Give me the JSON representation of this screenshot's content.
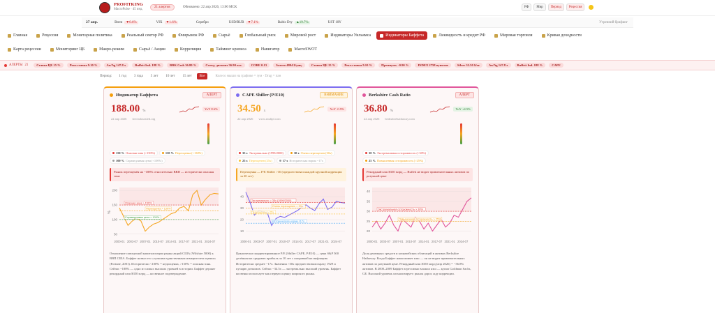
{
  "header": {
    "logo": "PROFITKING",
    "subtitle": "MacroPulse · 45 инд.",
    "alerts_badge": "21 алертов",
    "updated": "Обновлено: 22 апр 2026, 13:00 МСК",
    "buttons": [
      "РФ",
      "Мир",
      "Период",
      "Рецессия"
    ]
  },
  "ticker": {
    "date": "27 апр.",
    "items": [
      {
        "name": "Brent",
        "change": "▼0.6%",
        "dir": "down"
      },
      {
        "name": "VIX",
        "change": "▼1.6%",
        "dir": "down"
      },
      {
        "name": "Серебро"
      },
      {
        "name": "USD/RUB",
        "change": "▼7.1%",
        "dir": "down"
      },
      {
        "name": "Baltic Dry",
        "change": "▲19.7%",
        "dir": "up"
      },
      {
        "name": "UST 10Y"
      }
    ],
    "briefing": "Утренний брифинг"
  },
  "nav": {
    "rows": [
      [
        "Главная",
        "Рецессия",
        "Монетарная политика",
        "Реальный сектор РФ",
        "Финрынок РФ",
        "Сырьё",
        "Глобальный риск",
        "Мировой рост",
        "Индикаторы Уильямса",
        "Индикаторы Баффета",
        "Ликвидность и кредит РФ",
        "Мировая торговля",
        "Кривая доходности"
      ],
      [
        "Карта рецессии",
        "Мониторинг ЦБ",
        "Макро-режим",
        "Сырьё / Акции",
        "Корреляция",
        "Тайминг кризиса",
        "Навигатор",
        "MacroSWOT"
      ]
    ],
    "active": "Индикаторы Баффета"
  },
  "alerts": {
    "label": "АЛЕРТЫ",
    "count": "21",
    "chips": [
      "Ставка ЦБ 15 %",
      "Реал.ставка 9.10 %",
      "Au/Ag 147.8 x",
      "Buffett Ind. 188 %",
      "BRK Cash 36.80 %",
      "Сальд. дисконт 36.90 п.п.",
      "CORE 0.13",
      "Золото 4804 $/унц.",
      "Ставка ЦБ 15 %",
      "Реал.ставка 9.10 %",
      "Премиумь. -0.90 %",
      "INDEX 2758 пунктов",
      "Silver 32.50 $/oz",
      "Au/Ag 147.8 x",
      "Buffett Ind. 188 %",
      "CAPE"
    ]
  },
  "period": {
    "label": "Период:",
    "options": [
      "1 год",
      "3 года",
      "5 лет",
      "10 лет",
      "15 лет",
      "Все"
    ],
    "active": "Все",
    "hint": "Колесо мыши на графике = зум · Drag = пан"
  },
  "cards": [
    {
      "title": "Индикатор Баффета",
      "badge": "АЛЕРТ",
      "badge_kind": "alert",
      "accent": "#f59e0b",
      "value": "188.00",
      "unit": "%",
      "value_color": "#c62828",
      "yoy": "YoY 8.6%",
      "yoy_kind": "bad",
      "date": "22 апр 2026",
      "source": "fred.stlouisfed.org",
      "chips": [
        {
          "value": "150 %",
          "label": "Опасная зона (>150%)",
          "color": "#e53935"
        },
        {
          "value": "130 %",
          "label": "Переоценка (>130%)",
          "color": "#f59e0b"
        },
        {
          "value": "100 %",
          "label": "Справедливая цена (<100%)",
          "color": "#9e9e9e"
        }
      ],
      "note": "Рынок переоценён на ~188% относительно ВВП — исторически опасная зона",
      "note_kind": "alert",
      "chart": {
        "type": "line",
        "ylabel": "%",
        "categories": [
          "2000-01",
          null,
          null,
          "2003-07",
          null,
          null,
          "2007-01",
          null,
          null,
          "2010-07",
          null,
          null,
          "2014-01",
          null,
          null,
          "2017-07",
          null,
          null,
          "2021-01",
          null,
          null,
          "2024-07",
          null,
          null
        ],
        "series": [
          {
            "color": "#f5a623",
            "values": [
              140,
              110,
              80,
              95,
              105,
              95,
              60,
              75,
              85,
              90,
              100,
              110,
              120,
              125,
              140,
              145,
              130,
              185,
              200,
              150,
              170,
              185,
              190,
              188
            ]
          }
        ],
        "ylim": [
          40,
          210
        ],
        "yticks": [
          50,
          100,
          150,
          200
        ],
        "thresholds": [
          {
            "value": 150,
            "label": "Опасная зона > 150%",
            "color": "#e53935"
          },
          {
            "value": 130,
            "label": "Переоценка > 130%",
            "color": "#f59e0b"
          },
          {
            "value": 100,
            "label": "Справедливая цена < 100%",
            "color": "#43a047"
          }
        ]
      },
      "description": "Отношение совокупной капитализации рынка акций США (Wilshire 5000) к ВВП США. Баффет назвал его «лучшим единственным измерителем оценки» (Fortune, 2001). Исторически <100% = недооценка, >150% = опасная зона. Сейчас ~188% — одно из самых высоких уровней в истории. Баффет держит рекордный кэш $350 млрд — косвенное подтверждение."
    },
    {
      "title": "CAPE Shiller (P/E10)",
      "badge": "ВНИМАНИЕ",
      "badge_kind": "warn",
      "accent": "#7c6cf0",
      "value": "34.50",
      "unit": "x",
      "value_color": "#f5a623",
      "yoy": "YoY -0.9%",
      "yoy_kind": "bad",
      "date": "22 апр 2026",
      "source": "www.multpl.com",
      "chips": [
        {
          "value": "35 x",
          "label": "Экстремально (1999/2000)",
          "color": "#e53935"
        },
        {
          "value": "30 x",
          "label": "Очень переоценен (30x)",
          "color": "#f59e0b"
        },
        {
          "value": "25 x",
          "label": "Переоценен (25x)",
          "color": "#fbc02d"
        },
        {
          "value": "17 x",
          "label": "Историческая норма ~17x",
          "color": "#9e9e9e"
        }
      ],
      "note": "Переоценка — P/E Shiller >30 (предшествовал каждой крупной коррекции за 20 лет)",
      "note_kind": "warn",
      "chart": {
        "type": "line",
        "categories": [
          "2000-01",
          null,
          null,
          "2003-07",
          null,
          null,
          "2007-01",
          null,
          null,
          "2010-07",
          null,
          null,
          "2014-01",
          null,
          null,
          "2017-07",
          null,
          null,
          "2021-01",
          null,
          null,
          "2024-07",
          null,
          null
        ],
        "series": [
          {
            "color": "#7c6cf0",
            "values": [
              44,
              35,
              24,
              28,
              27,
              26,
              15,
              21,
              23,
              22,
              24,
              26,
              28,
              31,
              33,
              30,
              28,
              34,
              38,
              29,
              31,
              36,
              35,
              34.5
            ]
          }
        ],
        "ylim": [
          5,
          48
        ],
        "yticks": [
          10,
          20,
          30,
          40
        ],
        "thresholds": [
          {
            "value": 35,
            "label": "Экстремально > 35x (1999/2000)",
            "color": "#e53935"
          },
          {
            "value": 30,
            "label": "Очень переоценен > 30x",
            "color": "#f59e0b"
          },
          {
            "value": 25,
            "label": "Переоценен > 25x",
            "color": "#fbc02d"
          },
          {
            "value": 17,
            "label": "Историческая норма ≈17x",
            "color": "#42a5f5"
          }
        ]
      },
      "description": "Циклически скорректированное P/E (Shiller CAPE, P/E10) — цена S&P 500 делённая на среднюю прибыль за 10 лет с поправкой на инфляцию. Исторически среднее ~17x. Значения >30x предшествовали краху 1929 и пузырю доткомов. Сейчас ~34.5x — экстремально высокий уровень. Баффет косвенно использует как первую оценку широкого рынка."
    },
    {
      "title": "Berkshire Cash Ratio",
      "badge": "АЛЕРТ",
      "badge_kind": "alert",
      "accent": "#e0559a",
      "value": "36.80",
      "unit": "%",
      "value_color": "#c62828",
      "yoy": "YoY +4.5%",
      "yoy_kind": "good",
      "date": "22 апр 2026",
      "source": "berkshirehathaway.com",
      "chips": [
        {
          "value": "30 %",
          "label": "Экстремальная осторожность (>30%)",
          "color": "#e53935"
        },
        {
          "value": "25 %",
          "label": "Повышенная осторожность (>25%)",
          "color": "#f59e0b"
        }
      ],
      "note": "Рекордный кэш $350 млрд — Buffett не видит привлекательных активов по разумной цене",
      "note_kind": "alert",
      "chart": {
        "type": "line",
        "categories": [
          "2000-01",
          null,
          null,
          "2003-07",
          null,
          null,
          "2007-01",
          null,
          null,
          "2010-07",
          null,
          null,
          "2014-01",
          null,
          null,
          "2017-07",
          null,
          null,
          "2021-01",
          null,
          null,
          "2024-07",
          null,
          null
        ],
        "series": [
          {
            "color": "#e0559a",
            "values": [
              22,
              25,
              21,
              24,
              28,
              23,
              20,
              26,
              24,
              22,
              27,
              25,
              21,
              24,
              20,
              23,
              26,
              22,
              24,
              28,
              27,
              31,
              35,
              36.8
            ]
          }
        ],
        "ylim": [
          17,
          42
        ],
        "yticks": [
          20,
          25,
          30,
          35,
          40
        ],
        "thresholds": [
          {
            "value": 30,
            "label": "Экстремальная осторожность > 30%",
            "color": "#e53935"
          },
          {
            "value": 25,
            "label": "Повышенная осторожность > 25%",
            "color": "#f59e0b"
          }
        ]
      },
      "description": "Доля денежных средств и казначейских облигаций в активах Berkshire Hathaway. Когда Баффет накапливает кэш — он не видит привлекательных активов по разумной цене. Рекордный кэш $350 млрд (апр 2026) = ~36.8% активов. В 2008–2009 Баффет агрессивно вложил кэш — купил Goldman Sachs, GE. Высокий уровень сигнализирует: рынок дорог, жду коррекции."
    }
  ]
}
